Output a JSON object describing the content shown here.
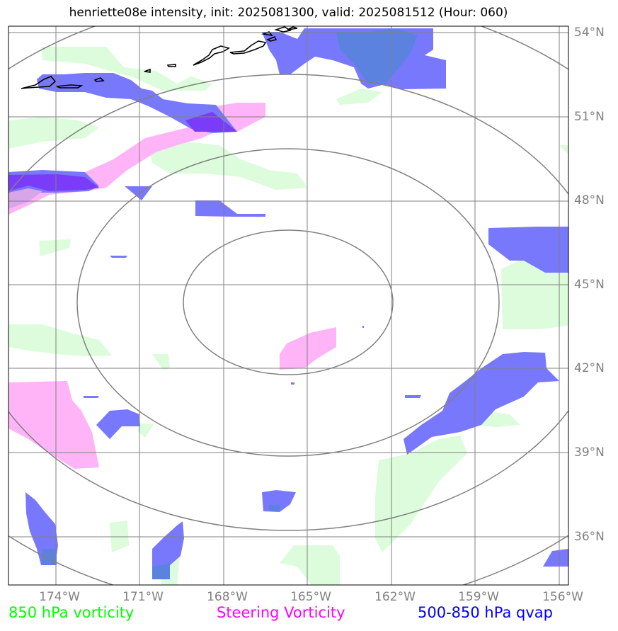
{
  "title": "henriette08e intensity, init: 2025081300, valid: 2025081512 (Hour: 060)",
  "lat_labels": [
    "54°N",
    "51°N",
    "48°N",
    "45°N",
    "42°N",
    "39°N",
    "36°N"
  ],
  "lon_labels": [
    "174°W",
    "171°W",
    "168°W",
    "165°W",
    "162°W",
    "159°W",
    "156°W"
  ],
  "legend": {
    "vorticity": "850 hPa vorticity",
    "steering": "Steering Vorticity",
    "qvap": "500-850 hPa qvap"
  },
  "colors": {
    "vorticity": "#00ff00",
    "steering": "#ff00ff",
    "qvap": "#0000ff",
    "vorticity_fill": "#dcfcdc",
    "steering_fill": "#ffb4f8",
    "qvap_fill": "#7878fc",
    "grid": "#808080",
    "coast": "#000000"
  }
}
